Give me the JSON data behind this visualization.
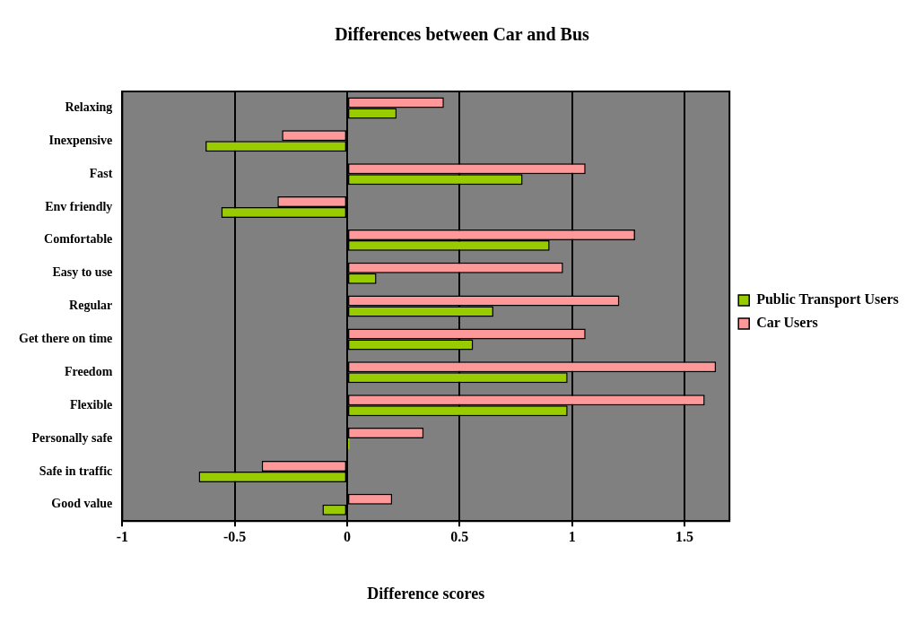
{
  "chart_data": {
    "type": "bar",
    "orientation": "horizontal",
    "title": "Differences between Car and Bus",
    "xlabel": "Difference scores",
    "categories": [
      "Relaxing",
      "Inexpensive",
      "Fast",
      "Env friendly",
      "Comfortable",
      "Easy to use",
      "Regular",
      "Get there on time",
      "Freedom",
      "Flexible",
      "Personally safe",
      "Safe in traffic",
      "Good value"
    ],
    "series": [
      {
        "name": "Car Users",
        "color": "#ff9999",
        "values": [
          0.43,
          -0.29,
          1.06,
          -0.31,
          1.28,
          0.96,
          1.21,
          1.06,
          1.64,
          1.59,
          0.34,
          -0.38,
          0.2
        ]
      },
      {
        "name": "Public Transport Users",
        "color": "#99cc00",
        "values": [
          0.22,
          -0.63,
          0.78,
          -0.56,
          0.9,
          0.13,
          0.65,
          0.56,
          0.98,
          0.98,
          0.01,
          -0.66,
          -0.11
        ]
      }
    ],
    "xlim": [
      -1,
      1.7
    ],
    "xticks": [
      -1,
      -0.5,
      0,
      0.5,
      1,
      1.5
    ],
    "grid": "x",
    "legend": "right"
  }
}
